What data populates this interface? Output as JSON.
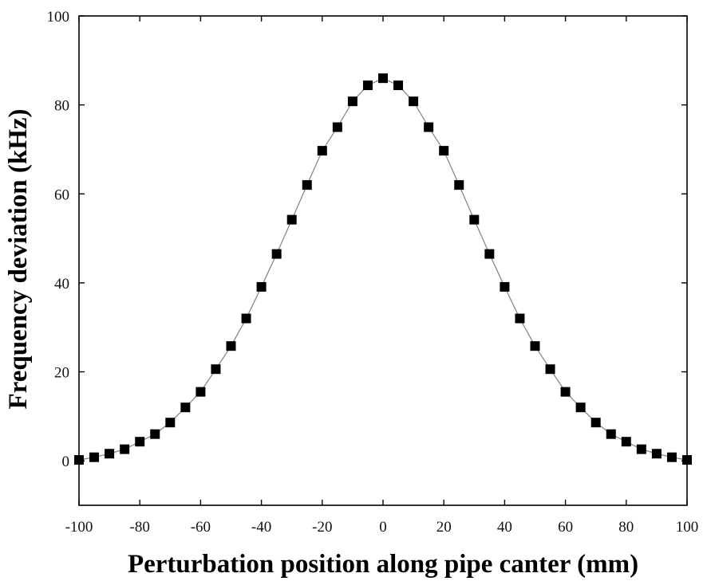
{
  "chart_data": {
    "type": "scatter",
    "title": "",
    "xlabel": "Perturbation position along pipe canter (mm)",
    "ylabel": "Frequency deviation (kHz)",
    "xlim": [
      -100,
      100
    ],
    "ylim": [
      -10,
      100
    ],
    "x_ticks": [
      -100,
      -80,
      -60,
      -40,
      -20,
      0,
      20,
      40,
      60,
      80,
      100
    ],
    "x_tick_labels": [
      "-100",
      "-80",
      "-60",
      "-40",
      "-20",
      "0",
      "20",
      "40",
      "60",
      "80",
      "100"
    ],
    "y_ticks": [
      0,
      20,
      40,
      60,
      80,
      100
    ],
    "y_tick_labels": [
      "0",
      "20",
      "40",
      "60",
      "80",
      "100"
    ],
    "grid": false,
    "legend": "none",
    "marker": "square",
    "connecting_line": true,
    "series": [
      {
        "x": [
          -100,
          -95,
          -90,
          -85,
          -80,
          -75,
          -70,
          -65,
          -60,
          -55,
          -50,
          -45,
          -40,
          -35,
          -30,
          -25,
          -20,
          -15,
          -10,
          -5,
          0,
          5,
          10,
          15,
          20,
          25,
          30,
          35,
          40,
          45,
          50,
          55,
          60,
          65,
          70,
          75,
          80,
          85,
          90,
          95,
          100
        ],
        "y": [
          0.2,
          0.8,
          1.6,
          2.6,
          4.3,
          6.0,
          8.6,
          12.0,
          15.5,
          20.6,
          25.8,
          32.0,
          39.1,
          46.5,
          54.2,
          62.0,
          69.7,
          75.0,
          80.8,
          84.4,
          86.0,
          84.4,
          80.8,
          75.0,
          69.7,
          62.0,
          54.2,
          46.5,
          39.1,
          32.0,
          25.8,
          20.6,
          15.5,
          12.0,
          8.6,
          6.0,
          4.3,
          2.6,
          1.6,
          0.8,
          0.2
        ]
      }
    ],
    "colors": {
      "marker": "#000000",
      "line": "#888888",
      "axis": "#000000"
    }
  }
}
